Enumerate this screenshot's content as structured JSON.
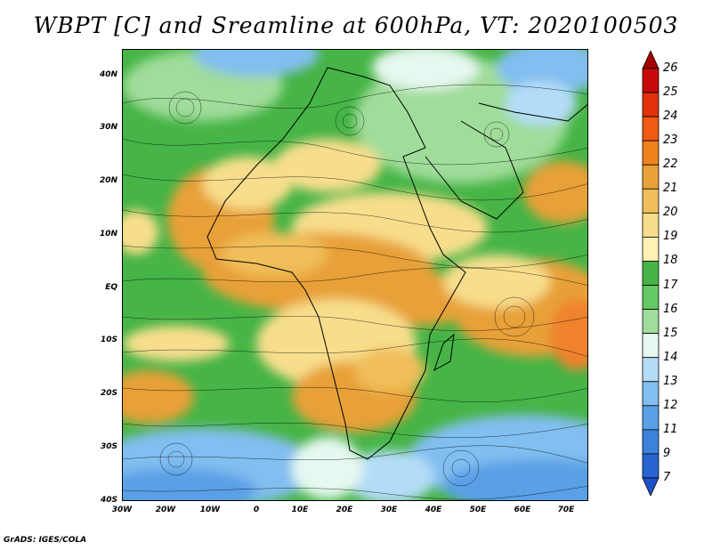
{
  "title": "WBPT [C] and Sreamline at 600hPa, VT: 2020100503",
  "footer": "GrADS: IGES/COLA",
  "lat_labels": [
    "40N",
    "30N",
    "20N",
    "10N",
    "EQ",
    "10S",
    "20S",
    "30S",
    "40S"
  ],
  "lon_labels": [
    "30W",
    "20W",
    "10W",
    "0",
    "10E",
    "20E",
    "30E",
    "40E",
    "50E",
    "60E",
    "70E"
  ],
  "colorbar": {
    "labels": [
      "26",
      "25",
      "24",
      "23",
      "22",
      "21",
      "20",
      "19",
      "18",
      "17",
      "16",
      "15",
      "14",
      "13",
      "12",
      "11",
      "9",
      "7"
    ],
    "colors": [
      "#a50000",
      "#c80a0a",
      "#e1320a",
      "#f05a14",
      "#f0821e",
      "#e8a038",
      "#f0be5a",
      "#f8de8c",
      "#fff0b4",
      "#46b446",
      "#64c864",
      "#a0dc9a",
      "#e6f8f0",
      "#b4dcf8",
      "#82bef0",
      "#5aa0e6",
      "#3c82dc",
      "#2864d2",
      "#1e50c8"
    ]
  },
  "fields": {
    "ocean_warm": "#e8a038",
    "land_green": "#46b446",
    "cold_blue": "#5aa0e6"
  }
}
